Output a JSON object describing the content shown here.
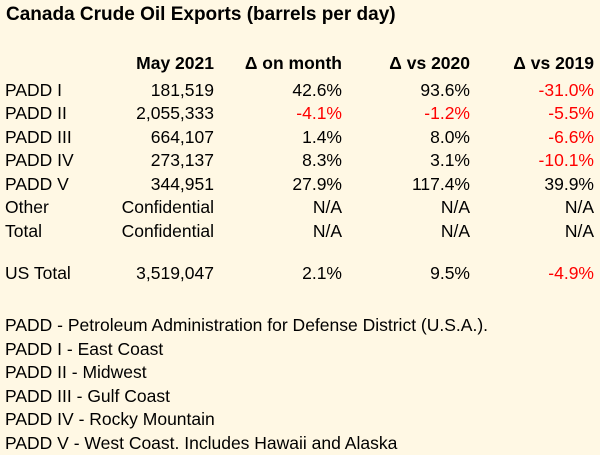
{
  "chart_data": {
    "type": "table",
    "title": "Canada Crude Oil Exports (barrels per day)",
    "columns": [
      "",
      "May 2021",
      "Δ on month",
      "Δ vs 2020",
      "Δ vs 2019"
    ],
    "rows": [
      {
        "label": "PADD I",
        "cells": [
          "181,519",
          "42.6%",
          "93.6%",
          "-31.0%"
        ]
      },
      {
        "label": "PADD II",
        "cells": [
          "2,055,333",
          "-4.1%",
          "-1.2%",
          "-5.5%"
        ]
      },
      {
        "label": "PADD III",
        "cells": [
          "664,107",
          "1.4%",
          "8.0%",
          "-6.6%"
        ]
      },
      {
        "label": "PADD IV",
        "cells": [
          "273,137",
          "8.3%",
          "3.1%",
          "-10.1%"
        ]
      },
      {
        "label": "PADD V",
        "cells": [
          "344,951",
          "27.9%",
          "117.4%",
          "39.9%"
        ]
      },
      {
        "label": "Other",
        "cells": [
          "Confidential",
          "N/A",
          "N/A",
          "N/A"
        ]
      },
      {
        "label": "Total",
        "cells": [
          "Confidential",
          "N/A",
          "N/A",
          "N/A"
        ]
      },
      {
        "label": "US Total",
        "cells": [
          "3,519,047",
          "2.1%",
          "9.5%",
          "-4.9%"
        ]
      }
    ],
    "negative_color": "#ff0000",
    "background_color": "#fff8e4"
  },
  "notes": [
    "PADD - Petroleum Administration for Defense District (U.S.A.).",
    "PADD I - East Coast",
    "PADD II - Midwest",
    "PADD III - Gulf Coast",
    "PADD IV - Rocky Mountain",
    "PADD V - West Coast. Includes Hawaii and Alaska"
  ]
}
